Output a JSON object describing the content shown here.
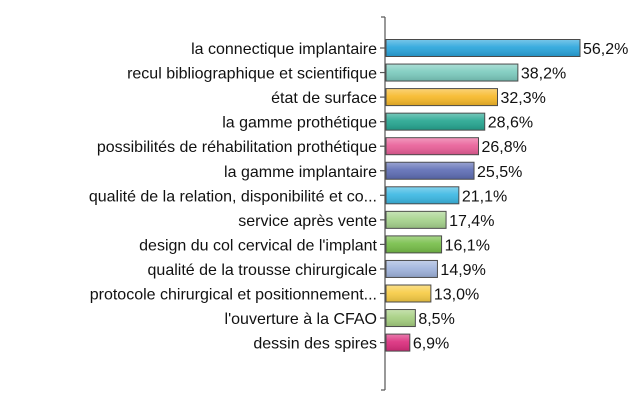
{
  "chart_data": {
    "type": "bar",
    "orientation": "horizontal",
    "title": "",
    "xlabel": "",
    "ylabel": "",
    "xlim": [
      0,
      60
    ],
    "grid": false,
    "legend": "none",
    "value_suffix": "%",
    "decimal_separator": ",",
    "categories": [
      "la connectique implantaire",
      "recul bibliographique et scientifique",
      "état de surface",
      "la gamme prothétique",
      "possibilités de réhabilitation prothétique",
      "la gamme implantaire",
      "qualité de la relation, disponibilité et co...",
      "service après vente",
      "design du col cervical de l'implant",
      "qualité de la trousse chirurgicale",
      "protocole chirurgical et positionnement...",
      "l'ouverture à la CFAO",
      "dessin des spires"
    ],
    "values": [
      56.2,
      38.2,
      32.3,
      28.6,
      26.8,
      25.5,
      21.1,
      17.4,
      16.1,
      14.9,
      13.0,
      8.5,
      6.9
    ],
    "data_labels": [
      "56,2%",
      "38,2%",
      "32,3%",
      "28,6%",
      "26,8%",
      "25,5%",
      "21,1%",
      "17,4%",
      "16,1%",
      "14,9%",
      "13,0%",
      "8,5%",
      "6,9%"
    ],
    "colors": [
      "#2aa5dc",
      "#7ccbbe",
      "#f7b929",
      "#26a691",
      "#e95f98",
      "#5f6eb5",
      "#3cb8e3",
      "#a6d38d",
      "#77be49",
      "#9fb3dc",
      "#f7cc45",
      "#a5cf80",
      "#db2d7d"
    ]
  }
}
